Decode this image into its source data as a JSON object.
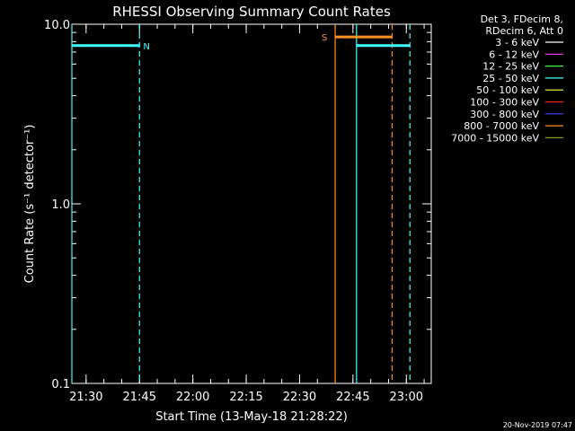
{
  "chart_data": {
    "type": "line",
    "title": "RHESSI Observing Summary Count Rates",
    "xlabel": "Start Time (13-May-18 21:28:22)",
    "ylabel": "Count Rate (s⁻¹ detector⁻¹)",
    "y_scale": "log",
    "ylim": [
      0.1,
      10.0
    ],
    "xlim": [
      "21:26",
      "23:07"
    ],
    "x_tick_labels": [
      "21:30",
      "21:45",
      "22:00",
      "22:15",
      "22:30",
      "22:45",
      "23:00"
    ],
    "y_tick_labels": [
      "0.1",
      "1.0",
      "10.0"
    ],
    "legend_header": [
      "Det 3, FDecim 8,",
      "RDecim 6, Att 0"
    ],
    "legend_position": "top-right",
    "legend": [
      {
        "label": "3 - 6 keV",
        "color": "#ffffff"
      },
      {
        "label": "6 - 12 keV",
        "color": "#ff40ff"
      },
      {
        "label": "12 - 25 keV",
        "color": "#40ff40"
      },
      {
        "label": "25 - 50 keV",
        "color": "#40ffff"
      },
      {
        "label": "50 - 100 keV",
        "color": "#ffff40"
      },
      {
        "label": "100 - 300 keV",
        "color": "#ff2020"
      },
      {
        "label": "300 - 800 keV",
        "color": "#4040ff"
      },
      {
        "label": "800 - 7000 keV",
        "color": "#ff9020"
      },
      {
        "label": "7000 - 15000 keV",
        "color": "#909020"
      }
    ],
    "series": [
      {
        "name": "25 - 50 keV",
        "color": "#40ffff",
        "x": [
          "21:26",
          "21:45"
        ],
        "y": [
          7.6,
          7.6
        ]
      },
      {
        "name": "25 - 50 keV",
        "color": "#40ffff",
        "x": [
          "22:46",
          "23:01"
        ],
        "y": [
          7.6,
          7.6
        ]
      },
      {
        "name": "800 - 7000 keV",
        "color": "#ff9020",
        "x": [
          "22:40",
          "22:56"
        ],
        "y": [
          8.5,
          8.5
        ]
      }
    ],
    "vlines": [
      {
        "x": "21:26",
        "style": "solid",
        "color": "#40ffff"
      },
      {
        "x": "21:45",
        "style": "dashed",
        "color": "#40ffff"
      },
      {
        "x": "22:40",
        "style": "solid",
        "color": "#ff9020"
      },
      {
        "x": "22:46",
        "style": "solid",
        "color": "#40ffff"
      },
      {
        "x": "22:56",
        "style": "dashed",
        "color": "#ff9020"
      },
      {
        "x": "23:01",
        "style": "dashed",
        "color": "#40ffff"
      }
    ],
    "annotations": [
      {
        "text": "N",
        "x": "21:47",
        "y": 7.6,
        "color": "#40ffff"
      },
      {
        "text": "S",
        "x": "22:37",
        "y": 8.5,
        "color": "#ff9020"
      }
    ]
  },
  "footer": {
    "timestamp": "20-Nov-2019 07:47"
  }
}
